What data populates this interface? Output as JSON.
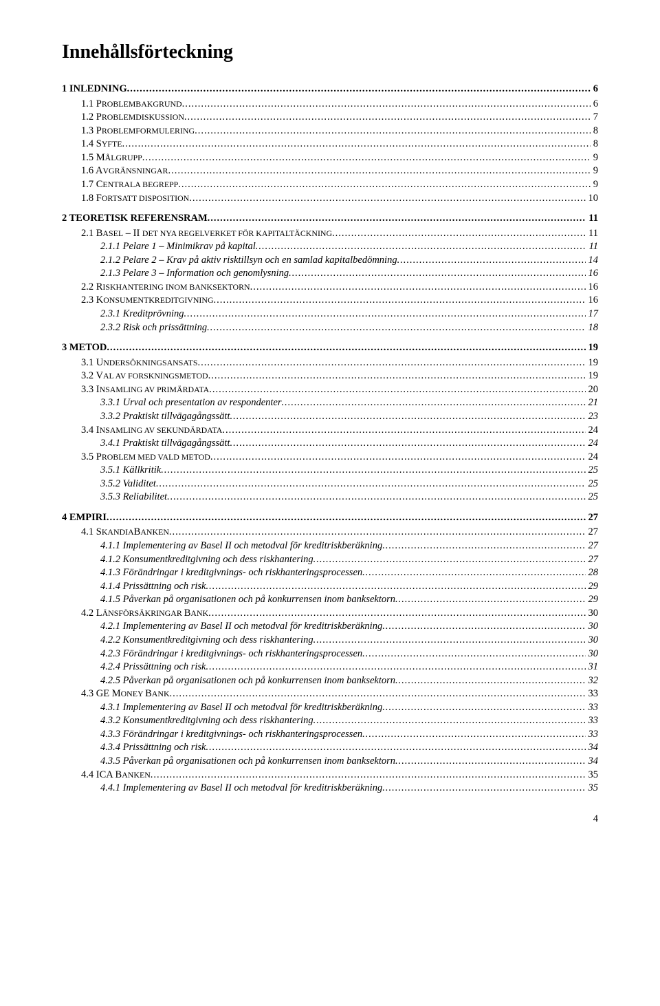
{
  "title": "Innehållsförteckning",
  "page_number": "4",
  "entries": [
    {
      "level": 0,
      "label": "1 INLEDNING",
      "page": "6"
    },
    {
      "level": 1,
      "label": "1.1 P",
      "sc": "ROBLEMBAKGRUND",
      "page": "6"
    },
    {
      "level": 1,
      "label": "1.2 P",
      "sc": "ROBLEMDISKUSSION",
      "page": "7"
    },
    {
      "level": 1,
      "label": "1.3 P",
      "sc": "ROBLEMFORMULERING",
      "page": "8"
    },
    {
      "level": 1,
      "label": "1.4 S",
      "sc": "YFTE",
      "page": "8"
    },
    {
      "level": 1,
      "label": "1.5 M",
      "sc": "ÅLGRUPP",
      "page": "9"
    },
    {
      "level": 1,
      "label": "1.6 A",
      "sc": "VGRÄNSNINGAR",
      "page": "9"
    },
    {
      "level": 1,
      "label": "1.7 C",
      "sc": "ENTRALA BEGREPP",
      "page": "9"
    },
    {
      "level": 1,
      "label": "1.8 F",
      "sc": "ORTSATT DISPOSITION",
      "page": "10"
    },
    {
      "level": 0,
      "label": "2 TEORETISK REFERENSRAM",
      "page": "11"
    },
    {
      "level": 1,
      "label": "2.1 B",
      "sc": "ASEL",
      "tail": " II ",
      "sc2": "DET NYA REGELVERKET FÖR KAPITALTÄCKNING",
      "dash": " – ",
      "page": "11"
    },
    {
      "level": 2,
      "label": "2.1.1 Pelare 1 – Minimikrav på kapital",
      "page": "11"
    },
    {
      "level": 2,
      "label": "2.1.2 Pelare 2 – Krav på aktiv risktillsyn och en samlad kapitalbedömning",
      "page": "14"
    },
    {
      "level": 2,
      "label": "2.1.3 Pelare 3 – Information och genomlysning",
      "page": "16"
    },
    {
      "level": 1,
      "label": "2.2 R",
      "sc": "ISKHANTERING INOM BANKSEKTORN",
      "page": "16"
    },
    {
      "level": 1,
      "label": "2.3 K",
      "sc": "ONSUMENTKREDITGIVNING",
      "page": "16"
    },
    {
      "level": 2,
      "label": "2.3.1 Kreditprövning",
      "page": "17"
    },
    {
      "level": 2,
      "label": "2.3.2 Risk och prissättning",
      "page": "18"
    },
    {
      "level": 0,
      "label": "3 METOD",
      "page": "19"
    },
    {
      "level": 1,
      "label": "3.1 U",
      "sc": "NDERSÖKNINGSANSATS",
      "page": "19"
    },
    {
      "level": 1,
      "label": "3.2 V",
      "sc": "AL AV FORSKNINGSMETOD",
      "page": "19"
    },
    {
      "level": 1,
      "label": "3.3 I",
      "sc": "NSAMLING AV PRIMÄRDATA",
      "page": "20"
    },
    {
      "level": 2,
      "label": "3.3.1 Urval och presentation av respondenter",
      "page": "21"
    },
    {
      "level": 2,
      "label": "3.3.2 Praktiskt tillvägagångssätt",
      "page": "23"
    },
    {
      "level": 1,
      "label": "3.4 I",
      "sc": "NSAMLING AV SEKUNDÄRDATA",
      "page": "24"
    },
    {
      "level": 2,
      "label": "3.4.1 Praktiskt tillvägagångssätt",
      "page": "24"
    },
    {
      "level": 1,
      "label": "3.5 P",
      "sc": "ROBLEM MED VALD METOD",
      "page": "24"
    },
    {
      "level": 2,
      "label": "3.5.1 Källkritik",
      "page": "25"
    },
    {
      "level": 2,
      "label": "3.5.2 Validitet",
      "page": "25"
    },
    {
      "level": 2,
      "label": "3.5.3 Reliabilitet",
      "page": "25"
    },
    {
      "level": 0,
      "label": "4 EMPIRI",
      "page": "27"
    },
    {
      "level": 1,
      "label": "4.1 S",
      "sc": "KANDIA",
      "tail": "B",
      "sc2": "ANKEN",
      "page": "27"
    },
    {
      "level": 2,
      "label": "4.1.1 Implementering av Basel II och metodval för kreditriskberäkning",
      "page": "27"
    },
    {
      "level": 2,
      "label": "4.1.2 Konsumentkreditgivning och dess riskhantering",
      "page": "27"
    },
    {
      "level": 2,
      "label": "4.1.3 Förändringar i kreditgivnings- och riskhanteringsprocessen",
      "page": "28"
    },
    {
      "level": 2,
      "label": "4.1.4 Prissättning och risk",
      "page": "29"
    },
    {
      "level": 2,
      "label": "4.1.5 Påverkan på organisationen och på konkurrensen inom banksektorn",
      "page": "29"
    },
    {
      "level": 1,
      "label": "4.2 L",
      "sc": "ÄNSFÖRSÄKRINGAR ",
      "tail": "B",
      "sc2": "ANK",
      "page": "30"
    },
    {
      "level": 2,
      "label": "4.2.1 Implementering av Basel II och metodval för kreditriskberäkning",
      "page": "30"
    },
    {
      "level": 2,
      "label": "4.2.2 Konsumentkreditgivning och dess riskhantering",
      "page": "30"
    },
    {
      "level": 2,
      "label": "4.2.3 Förändringar i kreditgivnings- och riskhanteringsprocessen",
      "page": "30"
    },
    {
      "level": 2,
      "label": "4.2.4 Prissättning och risk",
      "page": "31"
    },
    {
      "level": 2,
      "label": "4.2.5 Påverkan på organisationen och på konkurrensen inom banksektorn",
      "page": "32"
    },
    {
      "level": 1,
      "label": "4.3 GE M",
      "sc": "ONEY ",
      "tail": "B",
      "sc2": "ANK",
      "page": "33"
    },
    {
      "level": 2,
      "label": "4.3.1 Implementering av Basel II och metodval för kreditriskberäkning",
      "page": "33"
    },
    {
      "level": 2,
      "label": "4.3.2 Konsumentkreditgivning och dess riskhantering",
      "page": "33"
    },
    {
      "level": 2,
      "label": "4.3.3 Förändringar i kreditgivnings- och riskhanteringsprocessen",
      "page": "33"
    },
    {
      "level": 2,
      "label": "4.3.4 Prissättning och risk",
      "page": "34"
    },
    {
      "level": 2,
      "label": "4.3.5 Påverkan på organisationen och på konkurrensen inom banksektorn",
      "page": "34"
    },
    {
      "level": 1,
      "label": "4.4 ICA B",
      "sc": "ANKEN",
      "page": "35"
    },
    {
      "level": 2,
      "label": "4.4.1 Implementering av Basel II och metodval för kreditriskberäkning",
      "page": "35"
    }
  ]
}
